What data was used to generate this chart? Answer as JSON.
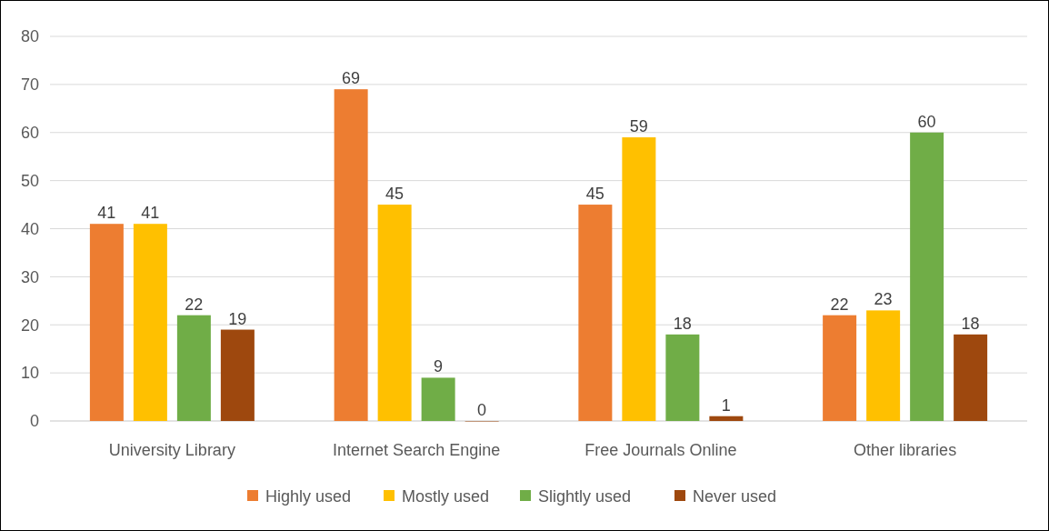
{
  "chart_data": {
    "type": "bar",
    "categories": [
      "University Library",
      "Internet Search Engine",
      "Free Journals Online",
      "Other libraries"
    ],
    "series": [
      {
        "name": "Highly used",
        "color": "#ed7d31",
        "values": [
          41,
          69,
          45,
          22
        ]
      },
      {
        "name": "Mostly used",
        "color": "#ffc000",
        "values": [
          41,
          45,
          59,
          23
        ]
      },
      {
        "name": "Slightly used",
        "color": "#70ad47",
        "values": [
          22,
          9,
          18,
          60
        ]
      },
      {
        "name": "Never used",
        "color": "#9e480e",
        "values": [
          19,
          0,
          1,
          18
        ]
      }
    ],
    "ylim": [
      0,
      80
    ],
    "yticks": [
      0,
      10,
      20,
      30,
      40,
      50,
      60,
      70,
      80
    ],
    "grid": "y",
    "legend": "bottom",
    "data_labels": true
  }
}
